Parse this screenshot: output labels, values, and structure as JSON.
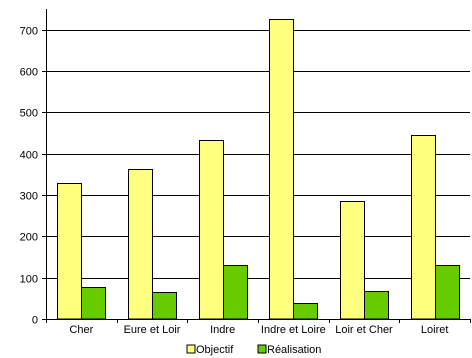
{
  "chart_data": {
    "type": "bar",
    "categories": [
      "Cher",
      "Eure et Loir",
      "Indre",
      "Indre et Loire",
      "Loir et Cher",
      "Loiret"
    ],
    "series": [
      {
        "name": "Objectif",
        "values": [
          330,
          362,
          434,
          725,
          285,
          446
        ],
        "color": "#FFFF80"
      },
      {
        "name": "Réalisation",
        "values": [
          77,
          66,
          130,
          38,
          68,
          130
        ],
        "color": "#66CC00"
      }
    ],
    "title": "",
    "xlabel": "",
    "ylabel": "",
    "ylim": [
      0,
      750
    ],
    "yticks": [
      0,
      100,
      200,
      300,
      400,
      500,
      600,
      700
    ],
    "grid": true,
    "legend": "bottom"
  }
}
